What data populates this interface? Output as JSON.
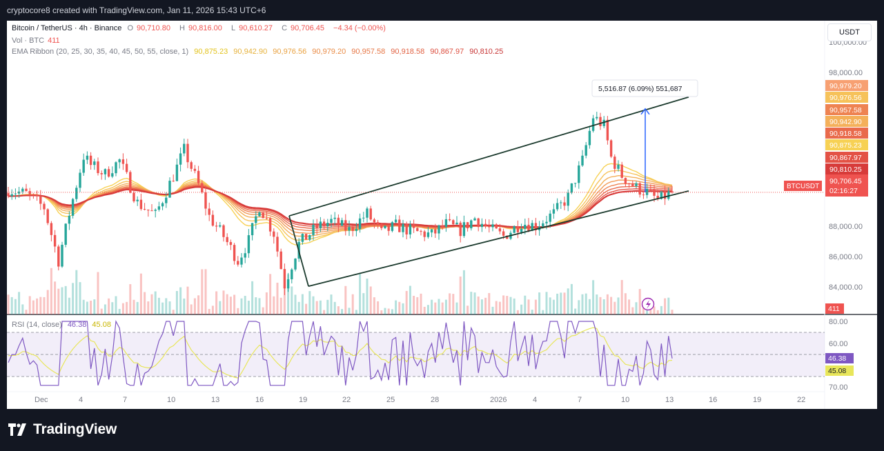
{
  "header": {
    "created": "cryptocore8 created with TradingView.com, Jan 11, 2026 15:43 UTC+6"
  },
  "legend": {
    "symbol": "Bitcoin / TetherUS · 4h · Binance",
    "o_label": "O",
    "o_value": "90,710.80",
    "h_label": "H",
    "h_value": "90,816.00",
    "l_label": "L",
    "l_value": "90,610.27",
    "c_label": "C",
    "c_value": "90,706.45",
    "change": "−4.34 (−0.00%)",
    "vol_label": "Vol · BTC",
    "vol_value": "411",
    "ema_label": "EMA Ribbon (20, 25, 30, 35, 40, 45, 50, 55, close, 1)",
    "ema_values": [
      "90,875.23",
      "90,942.90",
      "90,976.56",
      "90,979.20",
      "90,957.58",
      "90,918.58",
      "90,867.97",
      "90,810.25"
    ]
  },
  "currency_button": "USDT",
  "rsi_legend": {
    "label": "RSI (14, close)",
    "rsi_value": "46.38",
    "ma_value": "45.08"
  },
  "footer": {
    "brand": "TradingView"
  },
  "colors": {
    "up": "#26a69a",
    "down": "#ef5350",
    "rsi": "#7e57c2",
    "rsi_ma": "#e8e65a",
    "channel": "#1b3a2d",
    "measure": "#2962ff",
    "ema": [
      "#f7d154",
      "#f6c25a",
      "#f4b05a",
      "#f29a57",
      "#ee8352",
      "#e96a4b",
      "#e35245",
      "#d73b3a"
    ]
  },
  "chart_data": {
    "type": "candlestick",
    "symbol": "BTCUSDT",
    "interval": "4h",
    "y_range": [
      82000,
      101500
    ],
    "y_ticks": [
      "100,000.00",
      "98,000.00",
      "88,000.00",
      "86,000.00",
      "84,000.00"
    ],
    "x_ticks": [
      "Dec",
      "4",
      "7",
      "10",
      "13",
      "16",
      "19",
      "22",
      "25",
      "28",
      "2026",
      "4",
      "7",
      "10",
      "13",
      "16",
      "19",
      "22"
    ],
    "ema_labels": [
      "90,979.20",
      "90,976.56",
      "90,957.58",
      "90,942.90",
      "90,918.58",
      "90,875.23",
      "90,867.97",
      "90,810.25"
    ],
    "ema_label_colors": [
      "#f7a072",
      "#f6c25a",
      "#ee8352",
      "#f4b05a",
      "#e96a4b",
      "#f7d154",
      "#e35245",
      "#d73b3a"
    ],
    "last_price": {
      "symbol": "BTCUSDT",
      "price": "90,706.45",
      "countdown": "02:16:27"
    },
    "volume_label": "411",
    "measure": {
      "text": "5,516.87 (6.09%) 551,687",
      "from": 90706.45,
      "to": 96223.32
    },
    "channel": {
      "upper": [
        {
          "date": "Dec 17",
          "price": 89150
        },
        {
          "date": "Jan 13",
          "price": 97000
        }
      ],
      "lower": [
        {
          "date": "Dec 19",
          "price": 84500
        },
        {
          "date": "Jan 13",
          "price": 90800
        }
      ]
    },
    "rsi": {
      "y_ticks": [
        "80.00",
        "60.00",
        "70.00"
      ],
      "levels": [
        70,
        50,
        30
      ],
      "current": "46.38",
      "current_ma": "45.08",
      "peak": 80
    },
    "price_path": [
      [
        0,
        90900
      ],
      [
        5,
        90600
      ],
      [
        10,
        89700
      ],
      [
        14,
        86200
      ],
      [
        17,
        89300
      ],
      [
        21,
        93100
      ],
      [
        23,
        92500
      ],
      [
        27,
        91900
      ],
      [
        31,
        92800
      ],
      [
        36,
        90000
      ],
      [
        41,
        89200
      ],
      [
        46,
        91800
      ],
      [
        49,
        93500
      ],
      [
        53,
        91200
      ],
      [
        56,
        89100
      ],
      [
        60,
        87800
      ],
      [
        64,
        86200
      ],
      [
        67,
        87500
      ],
      [
        70,
        89800
      ],
      [
        74,
        88000
      ],
      [
        77,
        84600
      ],
      [
        81,
        87300
      ],
      [
        86,
        88400
      ],
      [
        90,
        88800
      ],
      [
        95,
        88200
      ],
      [
        100,
        89300
      ],
      [
        104,
        88000
      ],
      [
        108,
        88500
      ],
      [
        113,
        88100
      ],
      [
        118,
        87900
      ],
      [
        122,
        88600
      ],
      [
        126,
        88200
      ],
      [
        130,
        89000
      ],
      [
        134,
        88300
      ],
      [
        138,
        87800
      ],
      [
        143,
        88700
      ],
      [
        147,
        88500
      ],
      [
        152,
        89300
      ],
      [
        156,
        90400
      ],
      [
        160,
        92800
      ],
      [
        163,
        95700
      ],
      [
        166,
        95100
      ],
      [
        168,
        93000
      ],
      [
        171,
        91800
      ],
      [
        175,
        91000
      ],
      [
        178,
        90700
      ],
      [
        181,
        90200
      ],
      [
        185,
        90700
      ]
    ]
  }
}
